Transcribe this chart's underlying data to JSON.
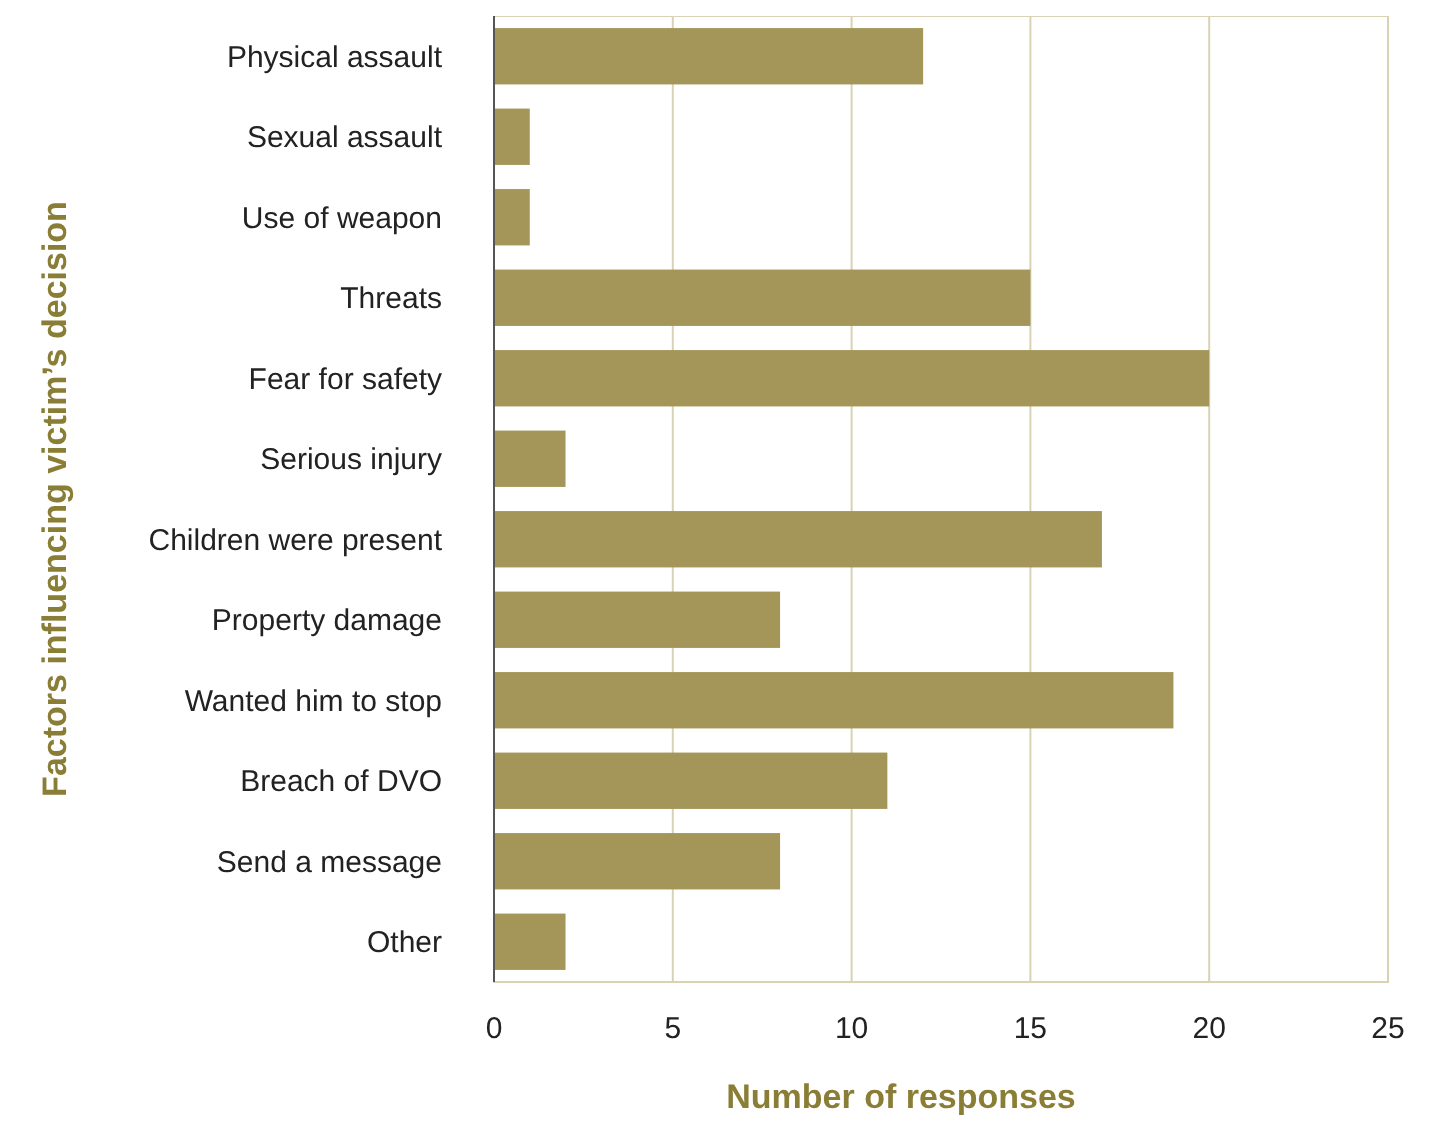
{
  "chart_data": {
    "type": "bar",
    "orientation": "horizontal",
    "xlabel": "Number of responses",
    "ylabel": "Factors influencing victim’s decision",
    "categories": [
      "Physical assault",
      "Sexual assault",
      "Use of weapon",
      "Threats",
      "Fear for safety",
      "Serious injury",
      "Children were present",
      "Property damage",
      "Wanted him to stop",
      "Breach of DVO",
      "Send a message",
      "Other"
    ],
    "values": [
      12,
      1,
      1,
      15,
      20,
      2,
      17,
      8,
      19,
      11,
      8,
      2
    ],
    "color": "#a39658",
    "xlim": [
      0,
      25
    ],
    "xticks": [
      0,
      5,
      10,
      15,
      20,
      25
    ],
    "grid": "x"
  }
}
